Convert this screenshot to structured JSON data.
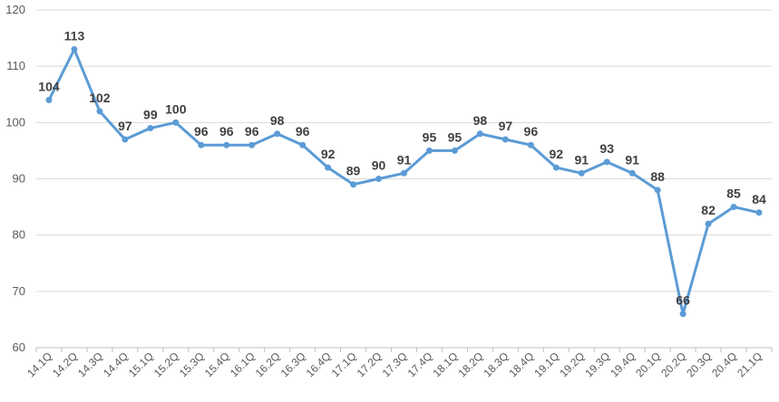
{
  "chart_data": {
    "type": "line",
    "title": "",
    "xlabel": "",
    "ylabel": "",
    "categories": [
      "14.1Q",
      "14.2Q",
      "14.3Q",
      "14.4Q",
      "15.1Q",
      "15.2Q",
      "15.3Q",
      "15.4Q",
      "16.1Q",
      "16.2Q",
      "16.3Q",
      "16.4Q",
      "17.1Q",
      "17.2Q",
      "17.3Q",
      "17.4Q",
      "18.1Q",
      "18.2Q",
      "18.3Q",
      "18.4Q",
      "19.1Q",
      "19.2Q",
      "19.3Q",
      "19.4Q",
      "20.1Q",
      "20.2Q",
      "20.3Q",
      "20.4Q",
      "21.1Q"
    ],
    "series": [
      {
        "values": [
          104,
          113,
          102,
          97,
          99,
          100,
          96,
          96,
          96,
          98,
          96,
          92,
          89,
          90,
          91,
          95,
          95,
          98,
          97,
          96,
          92,
          91,
          93,
          91,
          88,
          66,
          82,
          85,
          84
        ]
      }
    ],
    "ylim": [
      60,
      120
    ],
    "yticks": [
      60,
      70,
      80,
      90,
      100,
      110,
      120
    ],
    "grid": true,
    "legend": "none",
    "colors": {
      "line": "#5b9bd5",
      "grid": "#d9d9d9",
      "label": "#404040"
    }
  }
}
